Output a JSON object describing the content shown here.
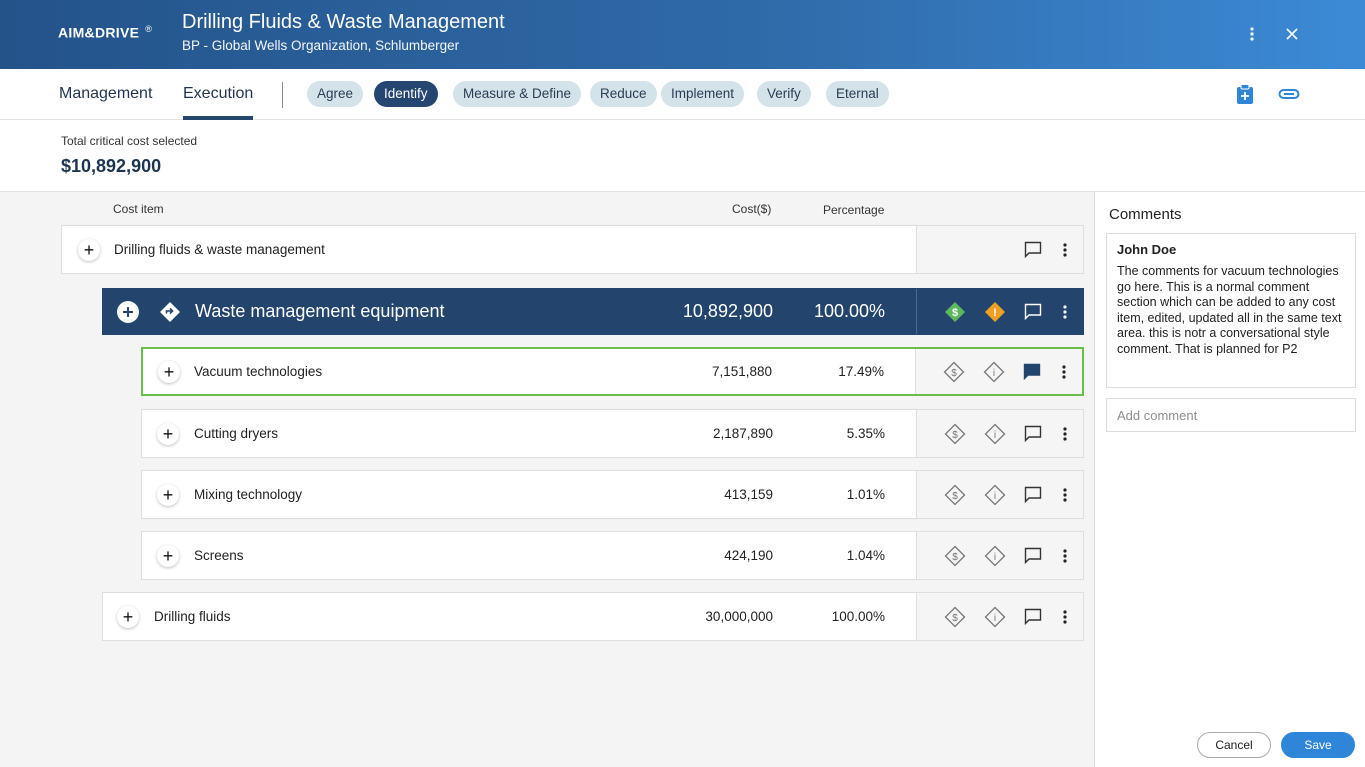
{
  "header": {
    "logo": "AIM&DRIVE",
    "logo_mark": "®",
    "title": "Drilling Fluids & Waste Management",
    "subtitle": "BP - Global Wells Organization, Schlumberger"
  },
  "nav": {
    "tabs": [
      {
        "label": "Management",
        "active": false
      },
      {
        "label": "Execution",
        "active": true
      }
    ],
    "phases": [
      {
        "label": "Agree",
        "active": false
      },
      {
        "label": "Identify",
        "active": true
      },
      {
        "label": "Measure & Define",
        "active": false
      },
      {
        "label": "Reduce",
        "active": false
      },
      {
        "label": "Implement",
        "active": false
      },
      {
        "label": "Verify",
        "active": false
      },
      {
        "label": "Eternal",
        "active": false
      }
    ]
  },
  "summary": {
    "label": "Total critical cost selected",
    "value": "$10,892,900"
  },
  "table": {
    "columns": {
      "item": "Cost item",
      "cost": "Cost($)",
      "percentage": "Percentage"
    },
    "rows": [
      {
        "name": "Drilling fluids & waste management",
        "cost": "",
        "percentage": ""
      },
      {
        "name": "Waste management equipment",
        "cost": "10,892,900",
        "percentage": "100.00%"
      },
      {
        "name": "Vacuum technologies",
        "cost": "7,151,880",
        "percentage": "17.49%"
      },
      {
        "name": "Cutting dryers",
        "cost": "2,187,890",
        "percentage": "5.35%"
      },
      {
        "name": "Mixing technology",
        "cost": "413,159",
        "percentage": "1.01%"
      },
      {
        "name": "Screens",
        "cost": "424,190",
        "percentage": "1.04%"
      },
      {
        "name": "Drilling fluids",
        "cost": "30,000,000",
        "percentage": "100.00%"
      }
    ]
  },
  "comments": {
    "title": "Comments",
    "author": "John Doe",
    "text": "The comments for vacuum technologies go here. This is a normal comment section which can be added to any cost item, edited, updated all in the same text area. this is notr a conversational style comment. That is planned for P2",
    "add_placeholder": "Add comment",
    "cancel_label": "Cancel",
    "save_label": "Save"
  },
  "colors": {
    "header_start": "#24538a",
    "header_end": "#3c8ad6",
    "active_pill": "#244670",
    "selected_row": "#23446c",
    "highlight_border": "#6abf4b",
    "save_button": "#2f86d8",
    "dollar_badge": "#5cb85c",
    "warning_badge": "#f0a020"
  },
  "icons": [
    "kebab-icon",
    "close-icon",
    "clipboard-add-icon",
    "attachment-icon",
    "plus-icon",
    "diamond-direction-icon",
    "dollar-diamond-icon",
    "info-diamond-icon",
    "comment-icon",
    "more-icon"
  ]
}
